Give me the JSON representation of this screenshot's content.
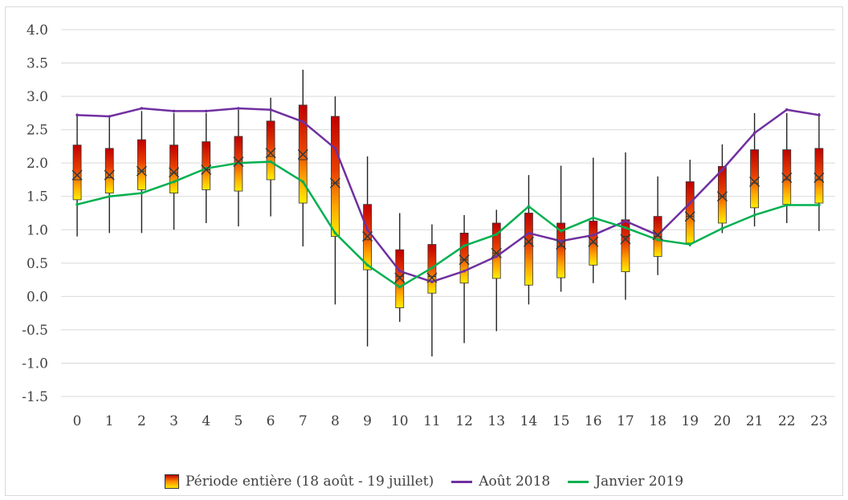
{
  "chart_data": {
    "type": "boxplot+line",
    "categories": [
      "0",
      "1",
      "2",
      "3",
      "4",
      "5",
      "6",
      "7",
      "8",
      "9",
      "10",
      "11",
      "12",
      "13",
      "14",
      "15",
      "16",
      "17",
      "18",
      "19",
      "20",
      "21",
      "22",
      "23"
    ],
    "ylim": [
      -1.5,
      4.0
    ],
    "yticks": [
      "4.0",
      "3.5",
      "3.0",
      "2.5",
      "2.0",
      "1.5",
      "1.0",
      "0.5",
      "0.0",
      "-0.5",
      "-1.0",
      "-1.5"
    ],
    "grid": true,
    "legend_position": "bottom",
    "boxplot": {
      "name": "Période entière (18 août - 19 juillet)",
      "min": [
        0.9,
        0.95,
        0.95,
        1.0,
        1.1,
        1.05,
        1.2,
        0.75,
        -0.12,
        -0.75,
        -0.38,
        -0.9,
        -0.7,
        -0.52,
        -0.12,
        0.07,
        0.2,
        -0.05,
        0.32,
        0.75,
        0.95,
        1.05,
        1.1,
        0.98
      ],
      "q1": [
        1.45,
        1.55,
        1.6,
        1.55,
        1.6,
        1.58,
        1.75,
        1.4,
        0.9,
        0.4,
        -0.17,
        0.05,
        0.2,
        0.27,
        0.17,
        0.28,
        0.47,
        0.37,
        0.6,
        0.8,
        1.1,
        1.33,
        1.38,
        1.4
      ],
      "median": [
        1.75,
        1.78,
        1.88,
        1.85,
        1.9,
        2.0,
        2.1,
        2.05,
        1.7,
        0.85,
        0.3,
        0.3,
        0.55,
        0.65,
        0.8,
        0.75,
        0.8,
        0.9,
        0.9,
        1.2,
        1.5,
        1.7,
        1.75,
        1.75
      ],
      "q3": [
        2.27,
        2.22,
        2.35,
        2.27,
        2.32,
        2.4,
        2.63,
        2.87,
        2.7,
        1.38,
        0.7,
        0.78,
        0.95,
        1.1,
        1.25,
        1.1,
        1.13,
        1.15,
        1.2,
        1.72,
        1.95,
        2.2,
        2.2,
        2.22
      ],
      "max": [
        2.72,
        2.7,
        2.78,
        2.75,
        2.75,
        2.8,
        2.98,
        3.4,
        3.0,
        2.1,
        1.25,
        1.08,
        1.22,
        1.3,
        1.82,
        1.96,
        2.08,
        2.16,
        1.8,
        2.05,
        2.28,
        2.75,
        2.75,
        2.75
      ],
      "mean": [
        1.82,
        1.82,
        1.88,
        1.86,
        1.9,
        2.02,
        2.15,
        2.13,
        1.7,
        0.9,
        0.28,
        0.28,
        0.55,
        0.65,
        0.82,
        0.78,
        0.82,
        0.86,
        0.92,
        1.2,
        1.5,
        1.72,
        1.78,
        1.78
      ]
    },
    "series": [
      {
        "name": "Août 2018",
        "color": "#7030a0",
        "values": [
          2.72,
          2.7,
          2.82,
          2.78,
          2.78,
          2.82,
          2.8,
          2.62,
          2.22,
          1.0,
          0.38,
          0.22,
          0.38,
          0.6,
          0.95,
          0.83,
          0.92,
          1.13,
          0.92,
          1.4,
          1.9,
          2.45,
          2.8,
          2.72
        ]
      },
      {
        "name": "Janvier 2019",
        "color": "#00b050",
        "values": [
          1.38,
          1.5,
          1.55,
          1.72,
          1.92,
          2.0,
          2.02,
          1.72,
          0.95,
          0.47,
          0.14,
          0.43,
          0.76,
          0.93,
          1.35,
          0.98,
          1.18,
          1.03,
          0.85,
          0.78,
          1.02,
          1.22,
          1.37,
          1.37
        ]
      }
    ],
    "legend": [
      {
        "label": "Période entière (18 août - 19 juillet)",
        "kind": "box"
      },
      {
        "label": "Août 2018",
        "kind": "line",
        "color": "#7030a0"
      },
      {
        "label": "Janvier 2019",
        "kind": "line",
        "color": "#00b050"
      }
    ]
  }
}
